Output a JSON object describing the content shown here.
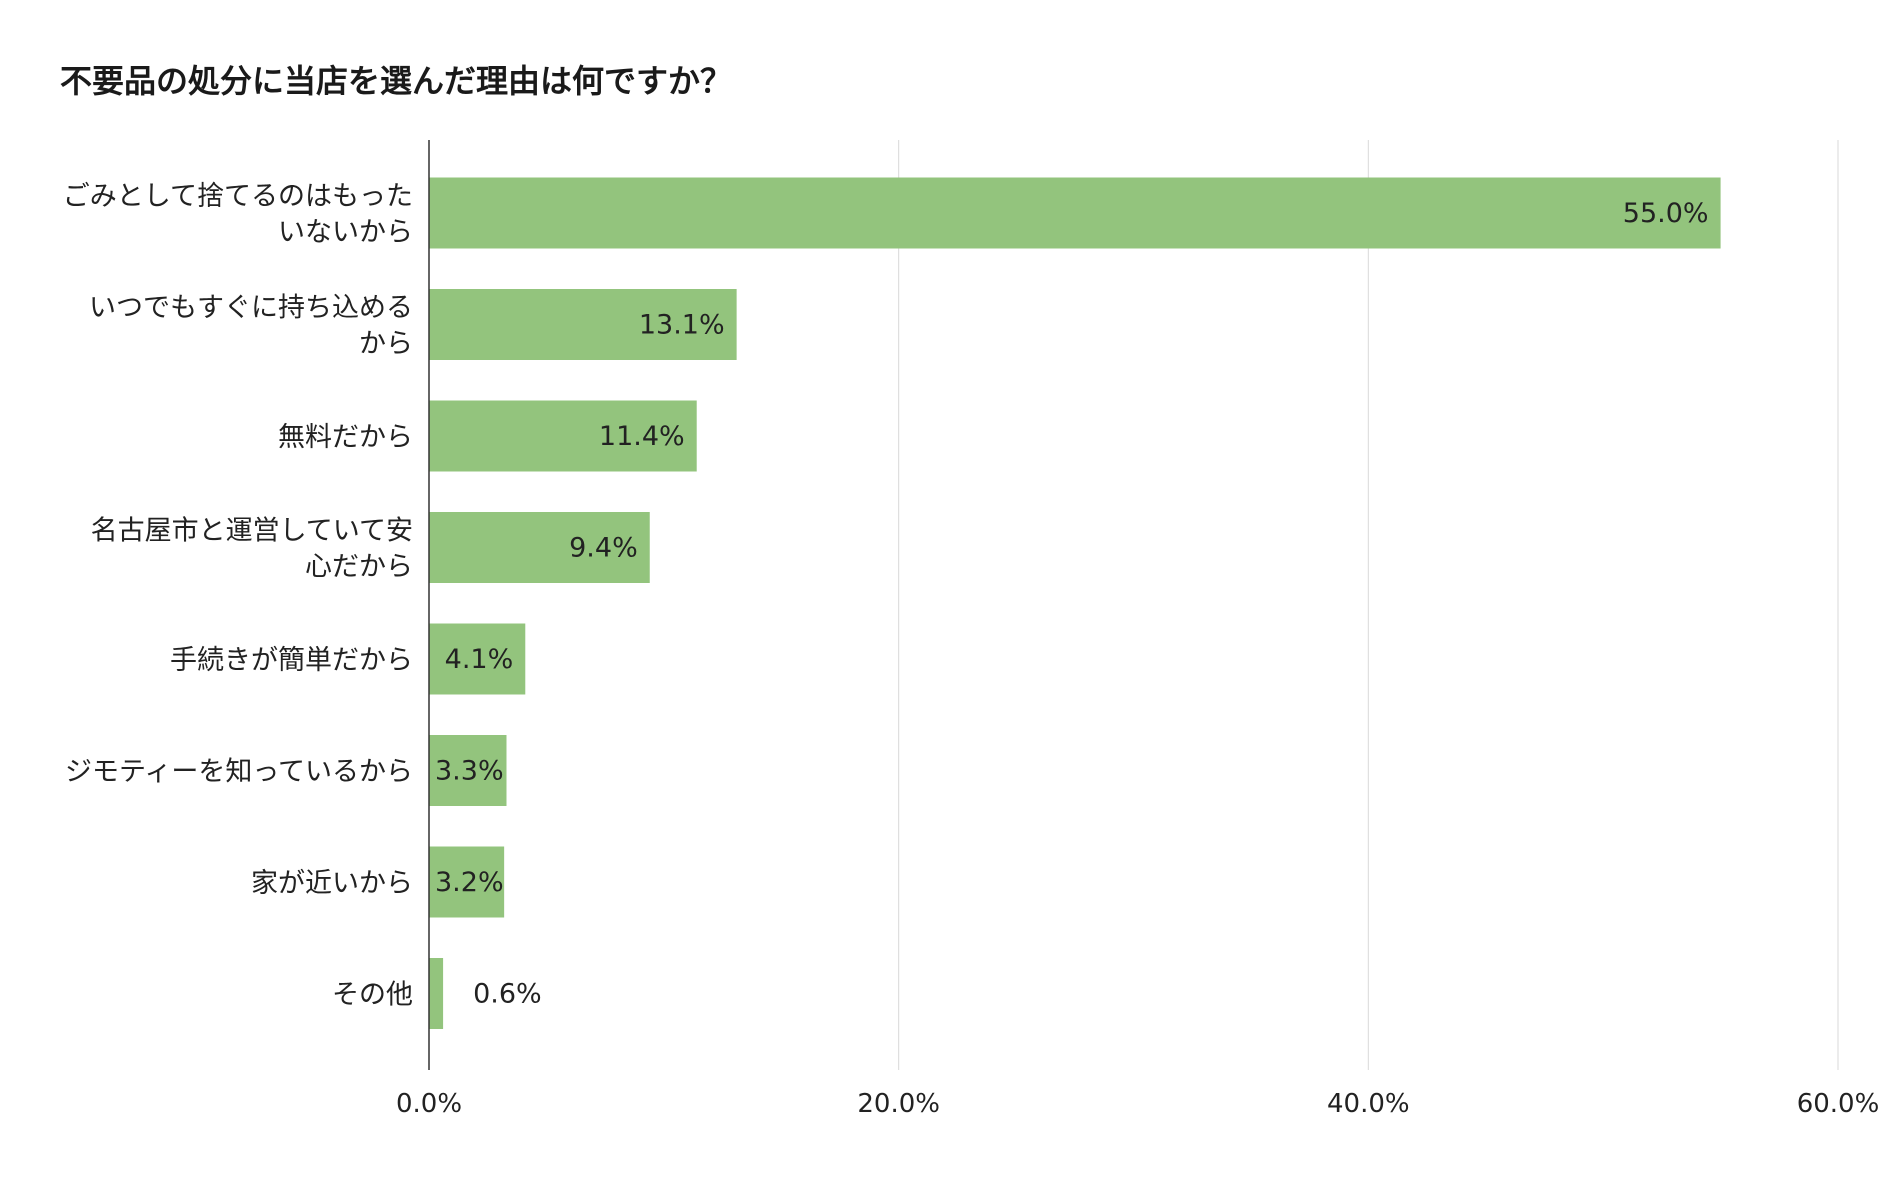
{
  "title": "不要品の処分に当店を選んだ理由は何ですか？",
  "chart_data": {
    "type": "bar",
    "orientation": "horizontal",
    "title": "不要品の処分に当店を選んだ理由は何ですか？",
    "categories": [
      [
        "ごみとして捨てるのはもった",
        "いないから"
      ],
      [
        "いつでもすぐに持ち込める",
        "から"
      ],
      [
        "無料だから"
      ],
      [
        "名古屋市と運営していて安",
        "心だから"
      ],
      [
        "手続きが簡単だから"
      ],
      [
        "ジモティーを知っているから"
      ],
      [
        "家が近いから"
      ],
      [
        "その他"
      ]
    ],
    "values": [
      55.0,
      13.1,
      11.4,
      9.4,
      4.1,
      3.3,
      3.2,
      0.6
    ],
    "value_labels": [
      "55.0%",
      "13.1%",
      "11.4%",
      "9.4%",
      "4.1%",
      "3.3%",
      "3.2%",
      "0.6%"
    ],
    "xlim": [
      0,
      60
    ],
    "x_ticks": [
      0,
      20,
      40,
      60
    ],
    "x_tick_labels": [
      "0.0%",
      "20.0%",
      "40.0%",
      "60.0%"
    ],
    "bar_color": "#93c47d",
    "grid": true,
    "legend": "none"
  }
}
